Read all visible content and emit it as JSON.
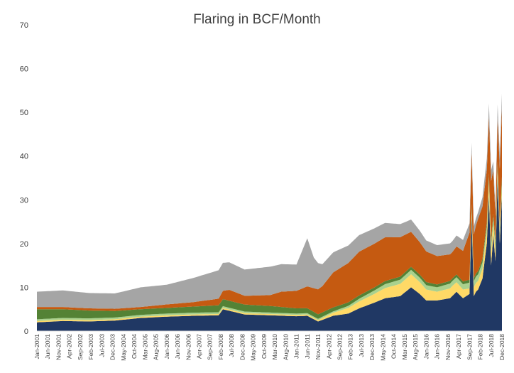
{
  "chart_data": {
    "type": "area",
    "stacked": true,
    "title": "Flaring in BCF/Month",
    "xlabel": "",
    "ylabel": "",
    "ylim": [
      0,
      70
    ],
    "yticks": [
      0,
      10,
      20,
      30,
      40,
      50,
      60,
      70
    ],
    "x_tick_labels": [
      "Jan-2001",
      "Jun-2001",
      "Nov-2001",
      "Apr-2002",
      "Sep-2002",
      "Feb-2003",
      "Jul-2003",
      "Dec-2003",
      "May-2004",
      "Oct-2004",
      "Mar-2005",
      "Aug-2005",
      "Jan-2006",
      "Jun-2006",
      "Nov-2006",
      "Apr-2007",
      "Sep-2007",
      "Feb-2008",
      "Jul-2008",
      "Dec-2008",
      "May-2009",
      "Oct-2009",
      "Mar-2010",
      "Aug-2010",
      "Jan-2011",
      "Jun-2011",
      "Nov-2011",
      "Apr-2012",
      "Sep-2012",
      "Feb-2013",
      "Jul-2013",
      "Dec-2013",
      "May-2014",
      "Oct-2014",
      "Mar-2015",
      "Aug-2015",
      "Jan-2016",
      "Jun-2016",
      "Nov-2016",
      "Apr-2017",
      "Sep-2017",
      "Feb-2018",
      "Jul-2018",
      "Dec-2018"
    ],
    "x_start": "2001-01",
    "x_end": "2018-12",
    "grid": false,
    "legend": "none",
    "series_colors": [
      "#203864",
      "#ffd966",
      "#a9d18e",
      "#548235",
      "#c55a11",
      "#a5a5a5"
    ],
    "series": [
      {
        "color": "#203864",
        "x": [
          "2001-01",
          "2002-01",
          "2003-01",
          "2004-01",
          "2005-01",
          "2006-01",
          "2007-01",
          "2008-01",
          "2008-03",
          "2009-01",
          "2010-01",
          "2011-01",
          "2011-06",
          "2011-11",
          "2012-06",
          "2013-01",
          "2013-06",
          "2014-01",
          "2014-06",
          "2015-01",
          "2015-06",
          "2015-10",
          "2016-01",
          "2016-06",
          "2016-12",
          "2017-03",
          "2017-06",
          "2017-09",
          "2017-10",
          "2017-11",
          "2017-12",
          "2018-01",
          "2018-03",
          "2018-05",
          "2018-06",
          "2018-07",
          "2018-08",
          "2018-09",
          "2018-10",
          "2018-11",
          "2018-12"
        ],
        "values": [
          2.0,
          2.3,
          2.2,
          2.4,
          3.0,
          3.3,
          3.5,
          3.6,
          5.0,
          3.8,
          3.6,
          3.4,
          3.5,
          2.2,
          3.5,
          4.0,
          5.2,
          6.5,
          7.5,
          8.0,
          10.0,
          8.5,
          7.0,
          7.0,
          7.5,
          9.0,
          7.5,
          8.5,
          26.0,
          8.0,
          9.0,
          9.5,
          12.0,
          20.0,
          31.0,
          15.0,
          22.0,
          16.0,
          35.0,
          20.0,
          31.0
        ]
      },
      {
        "color": "#ffd966",
        "x": [
          "2001-01",
          "2011-11",
          "2012-06",
          "2013-01",
          "2014-01",
          "2015-01",
          "2015-06",
          "2016-01",
          "2016-06",
          "2017-01",
          "2017-06",
          "2017-10",
          "2017-11",
          "2018-01",
          "2018-05",
          "2018-07",
          "2018-10",
          "2018-12"
        ],
        "values": [
          0.3,
          0.3,
          0.7,
          1.3,
          2.0,
          2.8,
          3.0,
          2.5,
          2.0,
          2.3,
          2.0,
          1.0,
          2.0,
          2.0,
          2.5,
          3.0,
          1.5,
          2.0
        ]
      },
      {
        "color": "#a9d18e",
        "x": [
          "2001-01",
          "2008-01",
          "2011-01",
          "2012-06",
          "2013-06",
          "2014-06",
          "2015-06",
          "2016-06",
          "2017-06",
          "2018-01",
          "2018-07",
          "2018-12"
        ],
        "values": [
          0.4,
          0.4,
          0.3,
          0.3,
          0.6,
          0.9,
          1.0,
          1.0,
          1.2,
          1.5,
          1.5,
          1.5
        ]
      },
      {
        "color": "#548235",
        "x": [
          "2001-01",
          "2002-01",
          "2003-01",
          "2004-01",
          "2005-01",
          "2006-01",
          "2007-01",
          "2008-01",
          "2009-01",
          "2010-01",
          "2011-01",
          "2012-01",
          "2013-01",
          "2014-01",
          "2015-01",
          "2016-01",
          "2017-01",
          "2018-01",
          "2018-07",
          "2018-12"
        ],
        "values": [
          2.3,
          2.0,
          1.8,
          1.5,
          1.3,
          1.3,
          1.4,
          1.6,
          1.6,
          1.5,
          1.2,
          1.0,
          0.8,
          0.7,
          0.7,
          0.7,
          0.6,
          0.7,
          0.8,
          0.8
        ]
      },
      {
        "color": "#c55a11",
        "x": [
          "2001-01",
          "2003-01",
          "2005-01",
          "2006-01",
          "2007-01",
          "2008-01",
          "2008-06",
          "2009-01",
          "2010-01",
          "2010-06",
          "2011-01",
          "2011-06",
          "2012-01",
          "2012-06",
          "2013-01",
          "2013-06",
          "2014-01",
          "2014-06",
          "2015-01",
          "2015-06",
          "2016-01",
          "2016-06",
          "2017-01",
          "2017-06",
          "2017-10",
          "2017-11",
          "2018-01",
          "2018-05",
          "2018-07",
          "2018-09",
          "2018-10",
          "2018-12"
        ],
        "values": [
          0.5,
          0.5,
          0.5,
          0.8,
          1.0,
          1.5,
          2.5,
          2.0,
          2.5,
          3.5,
          4.0,
          5.0,
          6.0,
          8.0,
          9.0,
          10.0,
          10.0,
          10.0,
          9.0,
          8.0,
          7.0,
          6.5,
          6.0,
          7.0,
          12.0,
          10.0,
          12.0,
          12.0,
          14.0,
          6.0,
          10.0,
          16.0
        ]
      },
      {
        "color": "#a5a5a5",
        "x": [
          "2001-01",
          "2002-01",
          "2003-01",
          "2004-01",
          "2005-01",
          "2006-01",
          "2007-01",
          "2008-01",
          "2009-01",
          "2010-01",
          "2011-01",
          "2011-06",
          "2011-09",
          "2012-01",
          "2013-01",
          "2014-01",
          "2015-01",
          "2016-01",
          "2017-01",
          "2017-06",
          "2017-10",
          "2018-01",
          "2018-06",
          "2018-09",
          "2018-10",
          "2018-12"
        ],
        "values": [
          3.5,
          3.8,
          3.5,
          3.5,
          4.5,
          4.5,
          5.5,
          6.5,
          6.0,
          6.5,
          6.0,
          11.0,
          7.0,
          5.0,
          4.0,
          3.5,
          3.0,
          2.5,
          2.5,
          2.5,
          2.0,
          1.5,
          3.0,
          1.5,
          3.0,
          3.0
        ]
      }
    ]
  }
}
